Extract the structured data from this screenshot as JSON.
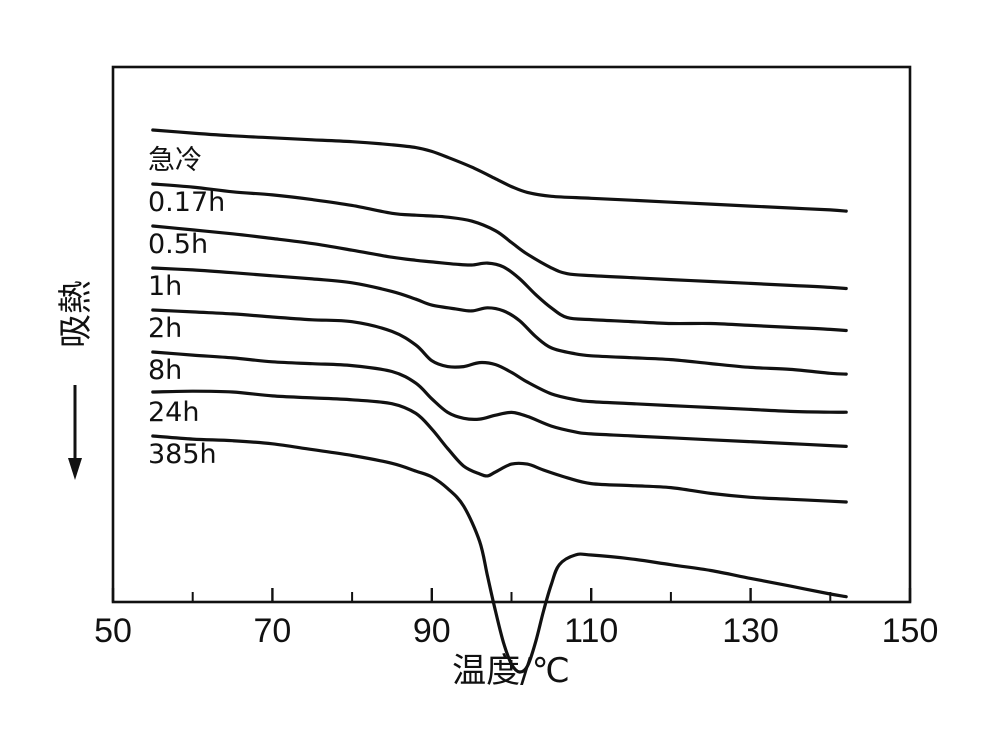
{
  "chart_data": {
    "type": "line",
    "xlabel": "温度/℃",
    "ylabel": "吸熱",
    "xlim": [
      50,
      150
    ],
    "xticks": [
      50,
      70,
      90,
      110,
      130,
      150
    ],
    "minor_xticks": [
      60,
      80,
      100,
      120,
      140
    ],
    "grid": false,
    "y_units": "relative heat flow (offset per curve, downward = endothermic)",
    "series": [
      {
        "name": "急冷",
        "x": [
          55,
          60,
          65,
          70,
          75,
          80,
          85,
          88,
          90,
          92,
          95,
          98,
          100,
          102,
          105,
          110,
          115,
          120,
          125,
          130,
          135,
          140,
          142
        ],
        "y": [
          0.0,
          -0.08,
          -0.15,
          -0.2,
          -0.25,
          -0.3,
          -0.38,
          -0.45,
          -0.55,
          -0.7,
          -0.95,
          -1.25,
          -1.45,
          -1.6,
          -1.7,
          -1.75,
          -1.8,
          -1.85,
          -1.9,
          -1.95,
          -2.0,
          -2.05,
          -2.08
        ]
      },
      {
        "name": "0.17h",
        "x": [
          55,
          60,
          65,
          70,
          75,
          80,
          85,
          88,
          90,
          92,
          95,
          98,
          100,
          102,
          105,
          107,
          110,
          115,
          120,
          125,
          130,
          135,
          140,
          142
        ],
        "y": [
          0.0,
          -0.08,
          -0.2,
          -0.28,
          -0.4,
          -0.55,
          -0.75,
          -0.8,
          -0.82,
          -0.85,
          -0.95,
          -1.2,
          -1.5,
          -1.8,
          -2.15,
          -2.3,
          -2.35,
          -2.4,
          -2.45,
          -2.5,
          -2.55,
          -2.6,
          -2.65,
          -2.68
        ]
      },
      {
        "name": "0.5h",
        "x": [
          55,
          60,
          65,
          70,
          75,
          80,
          85,
          88,
          90,
          93,
          95,
          97,
          99,
          101,
          103,
          105,
          107,
          110,
          115,
          120,
          125,
          130,
          135,
          140,
          142
        ],
        "y": [
          0.0,
          -0.1,
          -0.2,
          -0.32,
          -0.45,
          -0.62,
          -0.8,
          -0.88,
          -0.92,
          -0.98,
          -1.0,
          -0.95,
          -1.05,
          -1.35,
          -1.75,
          -2.1,
          -2.35,
          -2.4,
          -2.45,
          -2.5,
          -2.5,
          -2.55,
          -2.6,
          -2.65,
          -2.68
        ]
      },
      {
        "name": "1h",
        "x": [
          55,
          60,
          65,
          70,
          75,
          80,
          85,
          88,
          90,
          93,
          95,
          97,
          99,
          101,
          103,
          105,
          108,
          110,
          115,
          120,
          125,
          130,
          135,
          140,
          142
        ],
        "y": [
          0.0,
          -0.05,
          -0.12,
          -0.2,
          -0.28,
          -0.38,
          -0.6,
          -0.8,
          -0.95,
          -1.05,
          -1.1,
          -1.02,
          -1.1,
          -1.35,
          -1.75,
          -2.05,
          -2.2,
          -2.25,
          -2.3,
          -2.35,
          -2.45,
          -2.55,
          -2.6,
          -2.7,
          -2.72
        ]
      },
      {
        "name": "2h",
        "x": [
          55,
          60,
          65,
          70,
          75,
          80,
          85,
          88,
          90,
          92,
          94,
          96,
          98,
          100,
          102,
          105,
          108,
          110,
          115,
          120,
          125,
          130,
          135,
          140,
          142
        ],
        "y": [
          0.0,
          -0.05,
          -0.1,
          -0.18,
          -0.25,
          -0.3,
          -0.55,
          -0.9,
          -1.3,
          -1.45,
          -1.45,
          -1.35,
          -1.4,
          -1.6,
          -1.85,
          -2.15,
          -2.3,
          -2.35,
          -2.4,
          -2.45,
          -2.5,
          -2.55,
          -2.6,
          -2.62,
          -2.62
        ]
      },
      {
        "name": "8h",
        "x": [
          55,
          60,
          65,
          70,
          75,
          80,
          85,
          88,
          90,
          92,
          94,
          96,
          98,
          100,
          102,
          105,
          108,
          110,
          115,
          120,
          125,
          130,
          135,
          140,
          142
        ],
        "y": [
          0.0,
          -0.08,
          -0.15,
          -0.25,
          -0.3,
          -0.35,
          -0.5,
          -0.8,
          -1.2,
          -1.55,
          -1.7,
          -1.72,
          -1.62,
          -1.55,
          -1.65,
          -1.9,
          -2.05,
          -2.1,
          -2.15,
          -2.2,
          -2.25,
          -2.3,
          -2.35,
          -2.4,
          -2.42
        ]
      },
      {
        "name": "24h",
        "x": [
          55,
          60,
          65,
          70,
          75,
          80,
          85,
          88,
          90,
          92,
          94,
          96,
          97,
          98,
          100,
          102,
          104,
          107,
          110,
          115,
          120,
          125,
          130,
          135,
          140,
          142
        ],
        "y": [
          0.0,
          0.02,
          0.0,
          -0.1,
          -0.15,
          -0.2,
          -0.3,
          -0.55,
          -0.95,
          -1.45,
          -1.9,
          -2.1,
          -2.15,
          -2.05,
          -1.85,
          -1.85,
          -2.0,
          -2.2,
          -2.35,
          -2.4,
          -2.45,
          -2.6,
          -2.7,
          -2.75,
          -2.8,
          -2.82
        ]
      },
      {
        "name": "385h",
        "x": [
          55,
          60,
          65,
          70,
          75,
          80,
          85,
          88,
          90,
          92,
          94,
          96,
          97,
          98,
          99,
          100,
          101,
          102,
          103,
          104,
          105,
          106,
          108,
          110,
          115,
          120,
          125,
          130,
          135,
          140,
          142
        ],
        "y": [
          0.0,
          -0.08,
          -0.12,
          -0.2,
          -0.35,
          -0.5,
          -0.7,
          -0.9,
          -1.05,
          -1.35,
          -1.8,
          -2.7,
          -3.6,
          -4.5,
          -5.3,
          -5.85,
          -6.05,
          -5.9,
          -5.3,
          -4.5,
          -3.8,
          -3.3,
          -3.05,
          -3.05,
          -3.15,
          -3.3,
          -3.45,
          -3.65,
          -3.85,
          -4.05,
          -4.12
        ]
      }
    ]
  }
}
